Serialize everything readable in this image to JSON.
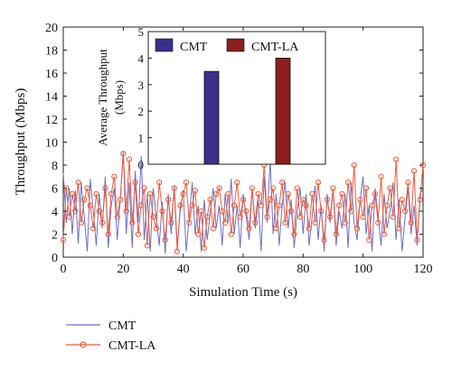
{
  "chart_data": [
    {
      "type": "line",
      "xlabel": "Simulation Time (s)",
      "ylabel": "Throughput (Mbps)",
      "xlim": [
        0,
        120
      ],
      "ylim": [
        0,
        20
      ],
      "x_ticks": [
        "0",
        "20",
        "40",
        "60",
        "80",
        "100",
        "120"
      ],
      "y_ticks": [
        "0",
        "2",
        "4",
        "6",
        "8",
        "10",
        "12",
        "14",
        "16",
        "18",
        "20"
      ],
      "grid": false,
      "legend_position": "below",
      "series": [
        {
          "name": "CMT",
          "color": "#6f6fc4",
          "marker": "none",
          "x": [
            0,
            1,
            2,
            3,
            4,
            5,
            6,
            7,
            8,
            9,
            10,
            11,
            12,
            13,
            14,
            15,
            16,
            17,
            18,
            19,
            20,
            21,
            22,
            23,
            24,
            25,
            26,
            27,
            28,
            29,
            30,
            31,
            32,
            33,
            34,
            35,
            36,
            37,
            38,
            39,
            40,
            41,
            42,
            43,
            44,
            45,
            46,
            47,
            48,
            49,
            50,
            51,
            52,
            53,
            54,
            55,
            56,
            57,
            58,
            59,
            60,
            61,
            62,
            63,
            64,
            65,
            66,
            67,
            68,
            69,
            70,
            71,
            72,
            73,
            74,
            75,
            76,
            77,
            78,
            79,
            80,
            81,
            82,
            83,
            84,
            85,
            86,
            87,
            88,
            89,
            90,
            91,
            92,
            93,
            94,
            95,
            96,
            97,
            98,
            99,
            100,
            101,
            102,
            103,
            104,
            105,
            106,
            107,
            108,
            109,
            110,
            111,
            112,
            113,
            114,
            115,
            116,
            117,
            118,
            119,
            120
          ],
          "y": [
            7.3,
            3.0,
            6.0,
            2.0,
            5.8,
            1.2,
            6.5,
            3.5,
            0.5,
            6.8,
            4.0,
            1.0,
            5.5,
            2.5,
            7.0,
            0.8,
            4.5,
            6.0,
            1.5,
            5.0,
            9.2,
            2.0,
            6.5,
            0.8,
            7.5,
            3.0,
            8.8,
            1.5,
            5.5,
            0.5,
            6.0,
            3.5,
            1.0,
            4.8,
            0.3,
            5.5,
            2.0,
            6.2,
            1.0,
            4.0,
            5.8,
            0.5,
            3.5,
            6.5,
            2.0,
            4.5,
            0.5,
            5.0,
            1.5,
            3.8,
            6.0,
            2.5,
            4.5,
            1.0,
            5.5,
            3.0,
            6.8,
            2.0,
            4.5,
            0.8,
            5.5,
            3.5,
            1.5,
            6.0,
            2.5,
            5.0,
            0.5,
            7.0,
            3.0,
            8.5,
            2.0,
            5.5,
            1.0,
            4.5,
            6.5,
            2.5,
            5.0,
            0.8,
            4.0,
            6.0,
            2.0,
            5.5,
            1.0,
            3.5,
            6.2,
            1.5,
            4.5,
            0.5,
            5.5,
            3.0,
            6.0,
            1.0,
            4.0,
            2.5,
            5.5,
            0.8,
            6.5,
            3.0,
            1.5,
            5.0,
            7.0,
            2.0,
            4.5,
            0.5,
            6.0,
            3.5,
            1.0,
            5.5,
            2.5,
            4.0,
            6.5,
            1.5,
            5.0,
            0.5,
            3.5,
            6.0,
            2.0,
            4.5,
            1.0,
            5.5,
            6.0
          ]
        },
        {
          "name": "CMT-LA",
          "color": "#ef5a3c",
          "marker": "circle",
          "x": [
            0,
            1,
            2,
            3,
            4,
            5,
            6,
            7,
            8,
            9,
            10,
            11,
            12,
            13,
            14,
            15,
            16,
            17,
            18,
            19,
            20,
            21,
            22,
            23,
            24,
            25,
            26,
            27,
            28,
            29,
            30,
            31,
            32,
            33,
            34,
            35,
            36,
            37,
            38,
            39,
            40,
            41,
            42,
            43,
            44,
            45,
            46,
            47,
            48,
            49,
            50,
            51,
            52,
            53,
            54,
            55,
            56,
            57,
            58,
            59,
            60,
            61,
            62,
            63,
            64,
            65,
            66,
            67,
            68,
            69,
            70,
            71,
            72,
            73,
            74,
            75,
            76,
            77,
            78,
            79,
            80,
            81,
            82,
            83,
            84,
            85,
            86,
            87,
            88,
            89,
            90,
            91,
            92,
            93,
            94,
            95,
            96,
            97,
            98,
            99,
            100,
            101,
            102,
            103,
            104,
            105,
            106,
            107,
            108,
            109,
            110,
            111,
            112,
            113,
            114,
            115,
            116,
            117,
            118,
            119,
            120
          ],
          "y": [
            1.5,
            6.0,
            3.5,
            5.5,
            4.0,
            6.5,
            3.0,
            5.0,
            6.0,
            4.5,
            2.5,
            5.5,
            4.0,
            3.0,
            6.0,
            2.0,
            5.5,
            7.0,
            3.5,
            5.0,
            9.0,
            4.0,
            8.5,
            3.0,
            6.5,
            2.0,
            4.5,
            6.0,
            1.0,
            5.5,
            3.5,
            2.5,
            6.5,
            4.0,
            1.5,
            5.0,
            3.0,
            6.0,
            0.5,
            4.5,
            5.5,
            6.5,
            3.0,
            4.5,
            5.8,
            2.0,
            4.0,
            0.8,
            3.5,
            5.0,
            2.5,
            5.5,
            6.0,
            4.0,
            3.0,
            5.5,
            2.0,
            4.5,
            6.5,
            3.5,
            5.0,
            4.0,
            2.5,
            6.0,
            3.0,
            5.5,
            4.5,
            8.0,
            3.5,
            5.0,
            6.0,
            2.5,
            4.5,
            6.5,
            3.0,
            5.5,
            4.0,
            2.0,
            6.0,
            3.5,
            5.0,
            4.5,
            2.5,
            5.5,
            3.0,
            6.5,
            4.0,
            1.5,
            5.0,
            3.5,
            6.0,
            2.0,
            4.5,
            5.5,
            3.0,
            6.5,
            4.0,
            8.0,
            2.5,
            5.0,
            3.5,
            6.0,
            1.5,
            4.5,
            5.5,
            3.0,
            7.0,
            2.0,
            4.5,
            6.0,
            3.5,
            8.5,
            2.5,
            5.0,
            4.0,
            6.5,
            3.0,
            7.5,
            1.5,
            5.0,
            8.0
          ]
        }
      ]
    },
    {
      "type": "bar",
      "ylabel": "Average Throughput (Mbps)",
      "ylim": [
        0,
        5
      ],
      "y_ticks": [
        "0",
        "1",
        "2",
        "3",
        "4",
        "5"
      ],
      "grid": false,
      "legend_position": "top",
      "categories": [
        "CMT",
        "CMT-LA"
      ],
      "values": [
        3.5,
        4.0
      ],
      "colors": [
        "#3b2f8c",
        "#8b1e1e"
      ]
    }
  ]
}
